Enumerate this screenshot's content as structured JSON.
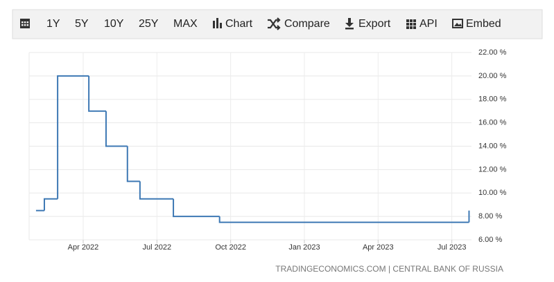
{
  "toolbar": {
    "buttons": [
      "1Y",
      "5Y",
      "10Y",
      "25Y",
      "MAX",
      "Chart",
      "Compare",
      "Export",
      "API",
      "Embed"
    ]
  },
  "chart_data": {
    "type": "line",
    "step": true,
    "x": [
      1.08,
      1.42,
      1.96,
      3.23,
      3.93,
      4.8,
      5.31,
      6.67,
      8.55,
      18.7
    ],
    "values": [
      8.5,
      9.5,
      20,
      17,
      14,
      11,
      9.5,
      8,
      7.5,
      8.5
    ],
    "color": "#3d78b4",
    "xlim": [
      0.8,
      18.8
    ],
    "xticks": [
      {
        "value": 3,
        "label": "Apr 2022"
      },
      {
        "value": 6,
        "label": "Jul 2022"
      },
      {
        "value": 9,
        "label": "Oct 2022"
      },
      {
        "value": 12,
        "label": "Jan 2023"
      },
      {
        "value": 15,
        "label": "Apr 2023"
      },
      {
        "value": 18,
        "label": "Jul 2023"
      }
    ],
    "ylim": [
      6,
      22
    ],
    "yticks": [
      {
        "value": 6,
        "label": "6.00 %"
      },
      {
        "value": 8,
        "label": "8.00 %"
      },
      {
        "value": 10,
        "label": "10.00 %"
      },
      {
        "value": 12,
        "label": "12.00 %"
      },
      {
        "value": 14,
        "label": "14.00 %"
      },
      {
        "value": 16,
        "label": "16.00 %"
      },
      {
        "value": 18,
        "label": "18.00 %"
      },
      {
        "value": 20,
        "label": "20.00 %"
      },
      {
        "value": 22,
        "label": "22.00 %"
      }
    ],
    "grid": true,
    "source": "TRADINGECONOMICS.COM | CENTRAL BANK OF RUSSIA"
  }
}
